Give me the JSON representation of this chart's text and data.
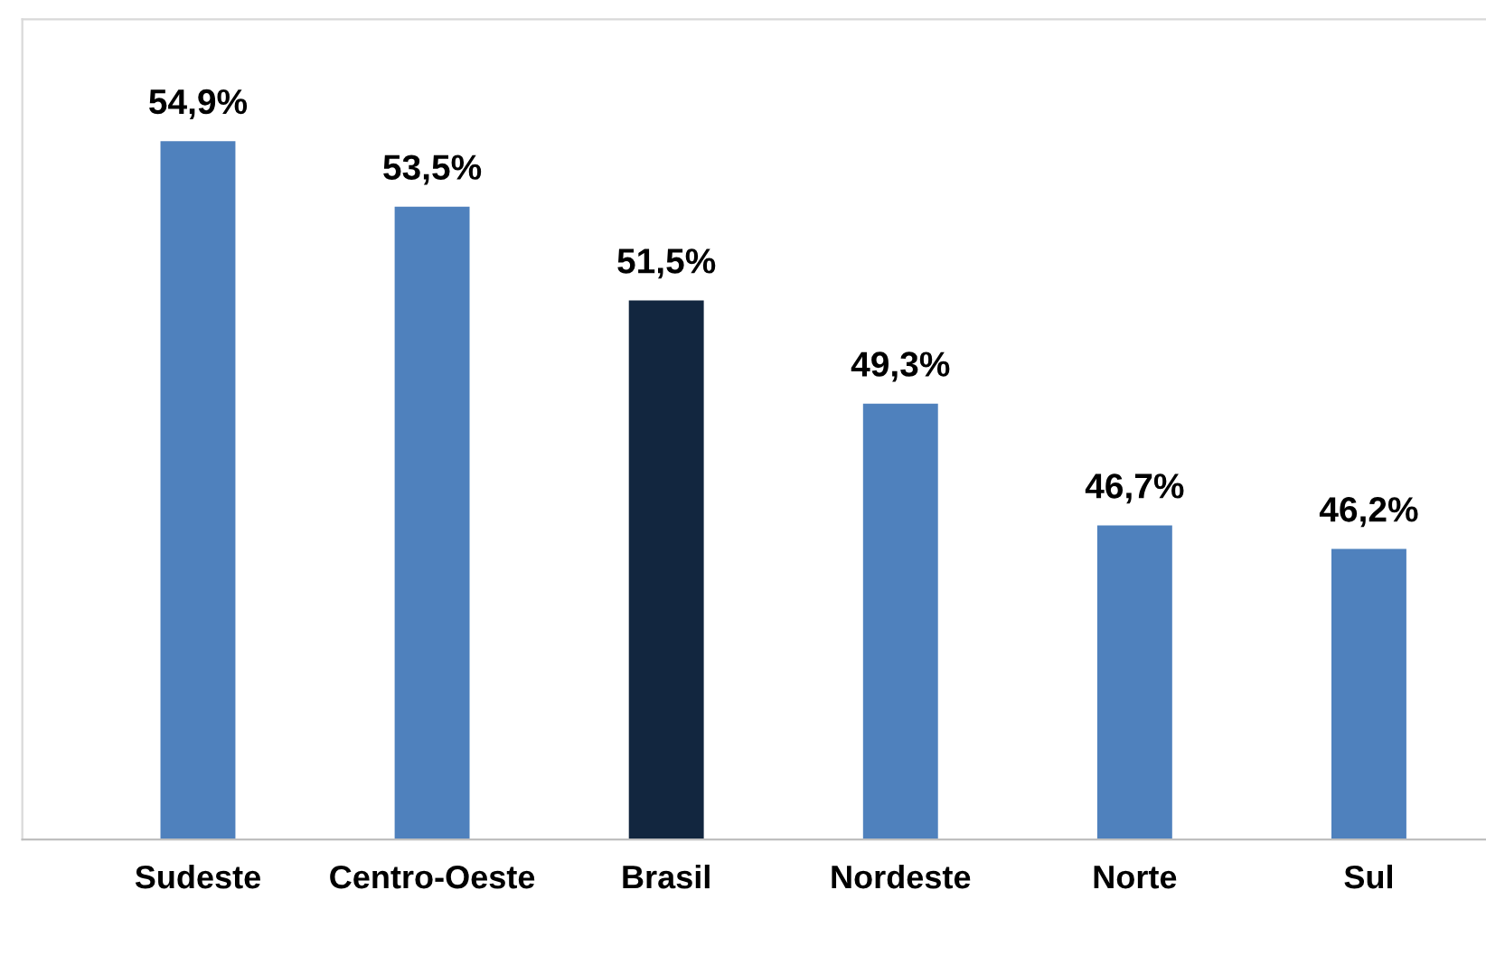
{
  "chart_data": {
    "type": "bar",
    "categories": [
      "Sudeste",
      "Centro-Oeste",
      "Brasil",
      "Nordeste",
      "Norte",
      "Sul"
    ],
    "values": [
      54.9,
      53.5,
      51.5,
      49.3,
      46.7,
      46.2
    ],
    "colors": [
      "#4f81bd",
      "#4f81bd",
      "#12263f",
      "#4f81bd",
      "#4f81bd",
      "#4f81bd"
    ],
    "value_labels": [
      "54,9%",
      "53,5%",
      "51,5%",
      "49,3%",
      "46,7%",
      "46,2%"
    ],
    "ylim": [
      40,
      57.5
    ],
    "tick_labels": "x",
    "grid": false,
    "legend": false
  }
}
